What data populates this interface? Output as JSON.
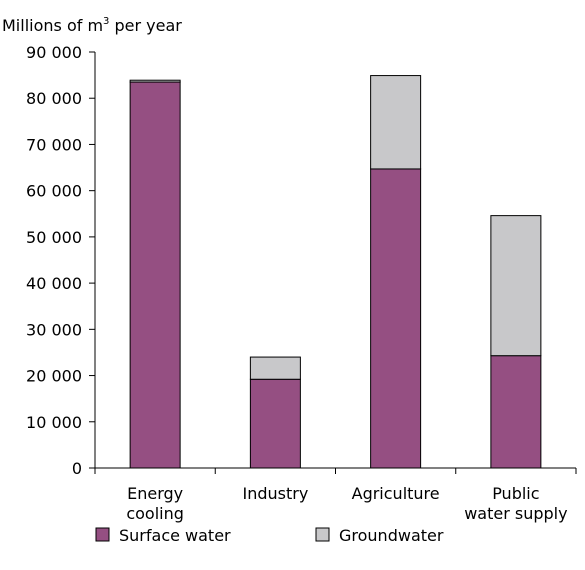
{
  "chart_data": {
    "type": "bar",
    "stacked": true,
    "title": "",
    "ylabel": "Millions of m",
    "ylabel_superscript": "3",
    "ylabel_suffix": " per year",
    "ylim": [
      0,
      90000
    ],
    "yticks": [
      0,
      10000,
      20000,
      30000,
      40000,
      50000,
      60000,
      70000,
      80000,
      90000
    ],
    "ytick_labels": [
      "0",
      "10 000",
      "20 000",
      "30 000",
      "40 000",
      "50 000",
      "60 000",
      "70 000",
      "80 000",
      "90 000"
    ],
    "grid": false,
    "legend_position": "bottom",
    "categories": [
      [
        "Energy",
        "cooling"
      ],
      [
        "Industry"
      ],
      [
        "Agriculture"
      ],
      [
        "Public",
        "water supply"
      ]
    ],
    "series": [
      {
        "name": "Surface water",
        "color": "#954F82",
        "values": [
          83500,
          19200,
          64700,
          24300
        ]
      },
      {
        "name": "Groundwater",
        "color": "#C8C8CA",
        "values": [
          400,
          4800,
          20200,
          30300
        ]
      }
    ]
  }
}
